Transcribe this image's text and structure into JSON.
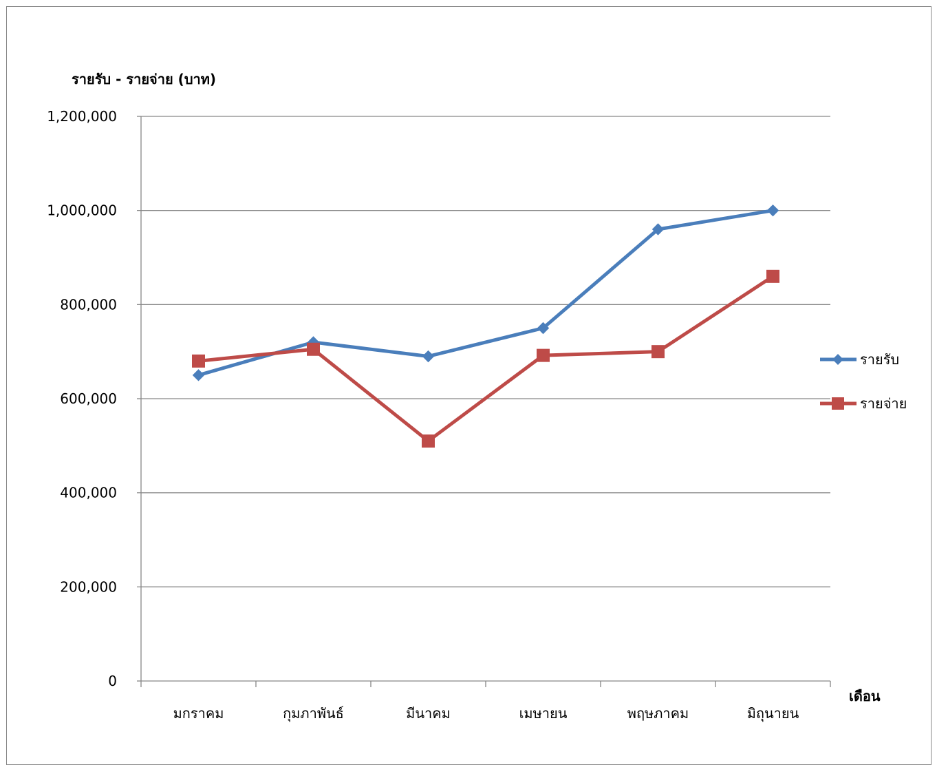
{
  "chart_data": {
    "type": "line",
    "ylabel": "รายรับ - รายจ่าย (บาท)",
    "xlabel": "เดือน",
    "categories": [
      "มกราคม",
      "กุมภาพันธ์",
      "มีนาคม",
      "เมษายน",
      "พฤษภาคม",
      "มิถุนายน"
    ],
    "ylim": [
      0,
      1200000
    ],
    "yticks": [
      0,
      200000,
      400000,
      600000,
      800000,
      1000000,
      1200000
    ],
    "ytick_labels": [
      "0",
      "200,000",
      "400,000",
      "600,000",
      "800,000",
      "1,000,000",
      "1,200,000"
    ],
    "grid": true,
    "legend": "right",
    "series": [
      {
        "name": "รายรับ",
        "color": "#4a7ebb",
        "marker": "diamond",
        "values": [
          650000,
          720000,
          690000,
          750000,
          960000,
          1000000
        ]
      },
      {
        "name": "รายจ่าย",
        "color": "#be4b48",
        "marker": "square",
        "values": [
          680000,
          705000,
          510000,
          692000,
          700000,
          860000
        ]
      }
    ]
  }
}
